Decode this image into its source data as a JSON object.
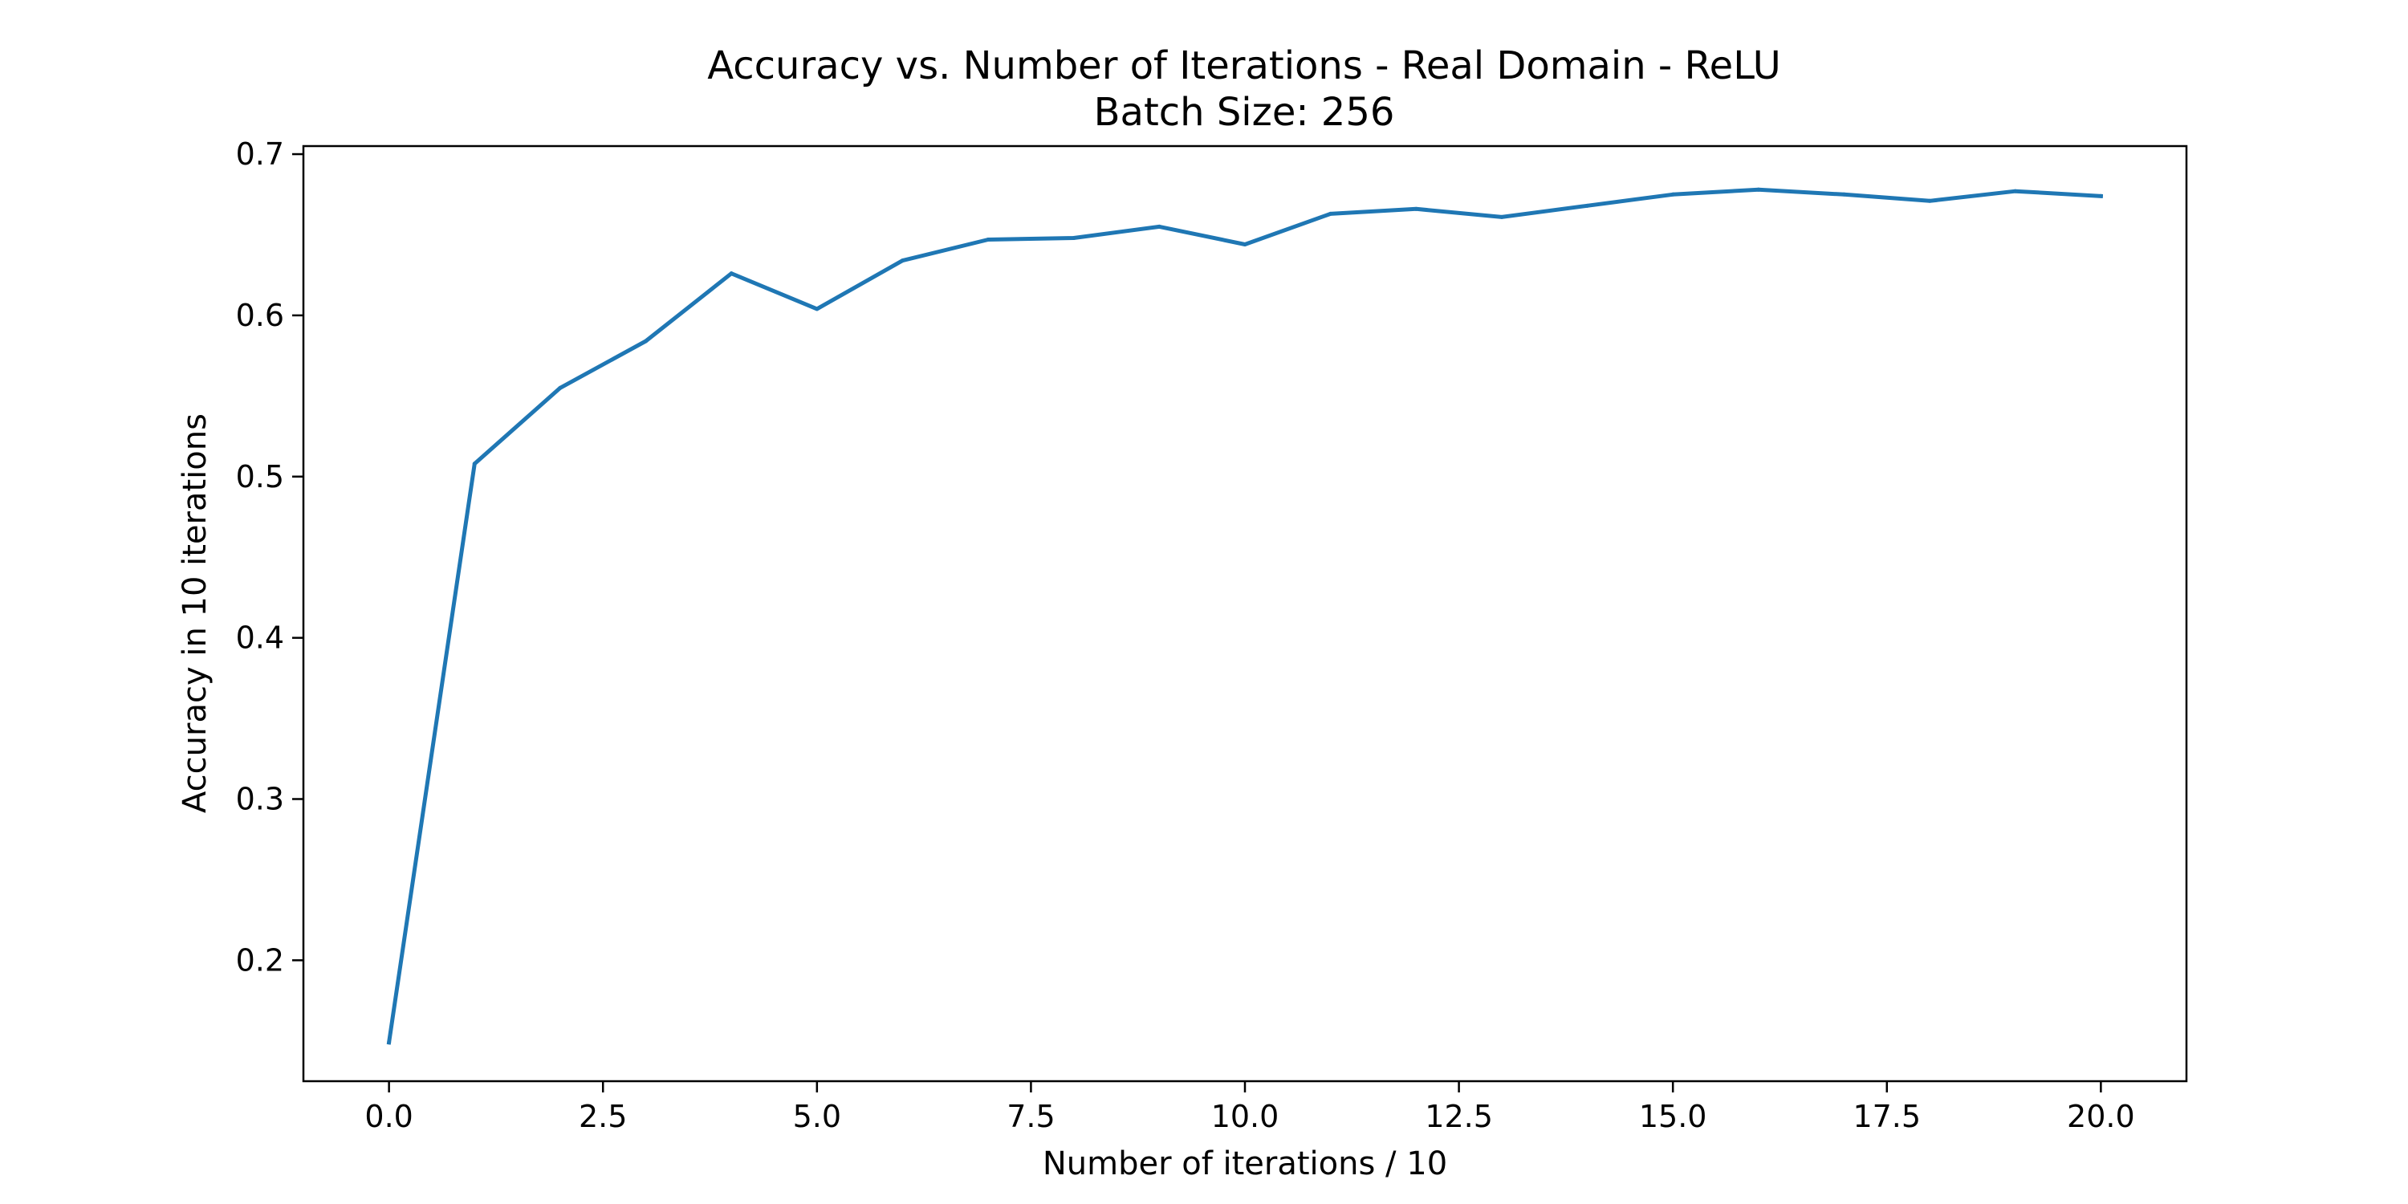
{
  "chart_data": {
    "type": "line",
    "title": "Accuracy vs. Number of Iterations - Real Domain - ReLU",
    "subtitle": "Batch Size: 256",
    "xlabel": "Number of iterations / 10",
    "ylabel": "Accuracy in 10 iterations",
    "xlim": [
      -1.0,
      21.0
    ],
    "ylim": [
      0.125,
      0.705
    ],
    "xticks": [
      0.0,
      2.5,
      5.0,
      7.5,
      10.0,
      12.5,
      15.0,
      17.5,
      20.0
    ],
    "xtick_labels": [
      "0.0",
      "2.5",
      "5.0",
      "7.5",
      "10.0",
      "12.5",
      "15.0",
      "17.5",
      "20.0"
    ],
    "yticks": [
      0.2,
      0.3,
      0.4,
      0.5,
      0.6,
      0.7
    ],
    "ytick_labels": [
      "0.2",
      "0.3",
      "0.4",
      "0.5",
      "0.6",
      "0.7"
    ],
    "grid": false,
    "series": [
      {
        "color": "#1f77b4",
        "x": [
          0,
          1,
          2,
          3,
          4,
          5,
          6,
          7,
          8,
          9,
          10,
          11,
          12,
          13,
          14,
          15,
          16,
          17,
          18,
          19,
          20
        ],
        "y": [
          0.149,
          0.508,
          0.555,
          0.584,
          0.626,
          0.604,
          0.634,
          0.647,
          0.648,
          0.655,
          0.644,
          0.663,
          0.666,
          0.661,
          0.668,
          0.675,
          0.678,
          0.675,
          0.671,
          0.677,
          0.674
        ]
      }
    ]
  }
}
